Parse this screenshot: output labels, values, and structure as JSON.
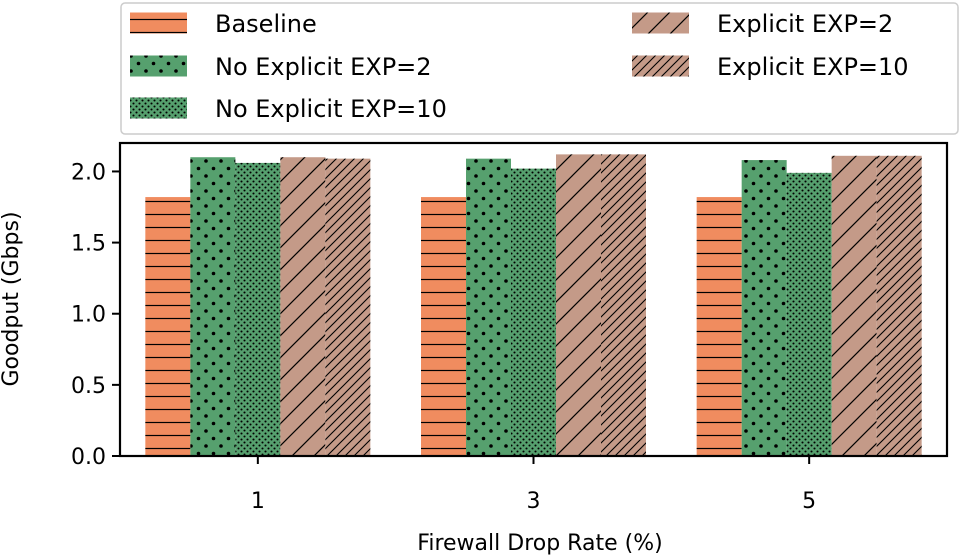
{
  "chart_data": {
    "type": "bar",
    "xlabel": "Firewall Drop Rate (%)",
    "ylabel": "Goodput (Gbps)",
    "ylim": [
      0,
      2.2
    ],
    "yticks": [
      "0.0",
      "0.5",
      "1.0",
      "1.5",
      "2.0"
    ],
    "categories": [
      "1",
      "3",
      "5"
    ],
    "legend_position": "top",
    "series": [
      {
        "name": "Baseline",
        "values": [
          1.82,
          1.82,
          1.82
        ],
        "color": "#f08c5f",
        "hatch": "horizontal-lines"
      },
      {
        "name": "No Explicit EXP=2",
        "values": [
          2.1,
          2.09,
          2.08
        ],
        "color": "#56a06e",
        "hatch": "sparse-dots"
      },
      {
        "name": "No Explicit EXP=10",
        "values": [
          2.06,
          2.02,
          1.99
        ],
        "color": "#56a06e",
        "hatch": "dense-dots"
      },
      {
        "name": "Explicit EXP=2",
        "values": [
          2.1,
          2.12,
          2.11
        ],
        "color": "#c49a88",
        "hatch": "sparse-diagonal"
      },
      {
        "name": "Explicit EXP=10",
        "values": [
          2.09,
          2.12,
          2.11
        ],
        "color": "#c49a88",
        "hatch": "dense-diagonal"
      }
    ]
  }
}
